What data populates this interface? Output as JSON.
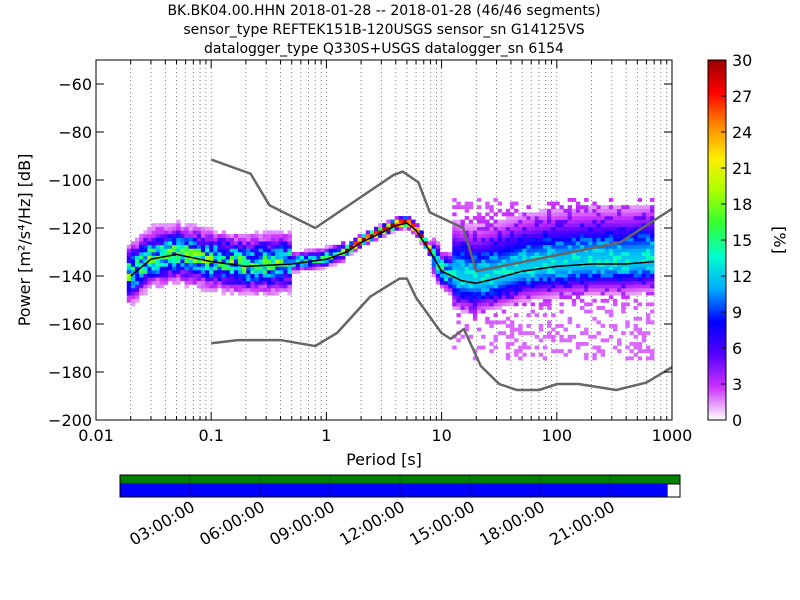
{
  "title": {
    "line1": "BK.BK04.00.HHN   2018-01-28 -- 2018-01-28  (46/46 segments)",
    "line2": "sensor_type REFTEK151B-120USGS sensor_sn G14125VS",
    "line3": "datalogger_type Q330S+USGS datalogger_sn 6154"
  },
  "chart_data": [
    {
      "type": "heatmap",
      "xlabel": "Period [s]",
      "ylabel": "Power [m²/s⁴/Hz] [dB]",
      "xscale": "log",
      "xlim": [
        0.01,
        1000
      ],
      "ylim": [
        -200,
        -50
      ],
      "xticks": [
        0.01,
        0.1,
        1,
        10,
        100,
        1000
      ],
      "xtick_labels": [
        "0.01",
        "0.1",
        "1",
        "10",
        "100",
        "1000"
      ],
      "yticks": [
        -200,
        -180,
        -160,
        -140,
        -120,
        -100,
        -80,
        -60
      ],
      "ytick_labels": [
        "−200",
        "−180",
        "−160",
        "−140",
        "−120",
        "−100",
        "−80",
        "−60"
      ],
      "grid": "dotted vertical at each log decade subdivision",
      "colorbar": {
        "label": "[%]",
        "min": 0,
        "max": 30,
        "ticks": [
          0,
          3,
          6,
          9,
          12,
          15,
          18,
          21,
          24,
          27,
          30
        ],
        "colors": [
          "#ffffff",
          "#cc33ff",
          "#5500ff",
          "#0000ff",
          "#00aaff",
          "#00ffcc",
          "#33ff33",
          "#aaff00",
          "#ffee00",
          "#ff8800",
          "#ff0000",
          "#990000"
        ]
      },
      "series": [
        {
          "name": "high noise model",
          "color": "#666666",
          "x": [
            0.1,
            0.22,
            0.32,
            0.8,
            3.8,
            4.6,
            6.3,
            7.9,
            15.4,
            20,
            354.8,
            1000
          ],
          "y": [
            -91.5,
            -97.4,
            -110.5,
            -120,
            -98,
            -96.5,
            -101,
            -113.5,
            -120,
            -138,
            -126,
            -112
          ]
        },
        {
          "name": "low noise model",
          "color": "#666666",
          "x": [
            0.1,
            0.17,
            0.4,
            0.8,
            1.24,
            2.4,
            4.3,
            5.0,
            6.0,
            10.0,
            12.0,
            15.6,
            21.9,
            31.6,
            45,
            70,
            101,
            154,
            328,
            600,
            1000
          ],
          "y": [
            -168,
            -166.7,
            -166.7,
            -169.2,
            -163.7,
            -148.6,
            -141.1,
            -141.1,
            -149,
            -163.8,
            -166.2,
            -162.1,
            -177.5,
            -185,
            -187.5,
            -187.5,
            -185,
            -185,
            -187.5,
            -184.4,
            -178
          ]
        },
        {
          "name": "mode",
          "color": "#000000",
          "x": [
            0.02,
            0.03,
            0.05,
            0.1,
            0.2,
            0.5,
            1,
            1.5,
            2,
            3,
            4,
            5,
            6,
            8,
            10,
            15,
            20,
            30,
            50,
            100,
            200,
            400,
            700
          ],
          "y": [
            -140,
            -133,
            -131,
            -134,
            -136,
            -135,
            -133,
            -130,
            -126,
            -122,
            -119,
            -118,
            -121,
            -130,
            -138,
            -142,
            -143,
            -141,
            -138,
            -136,
            -135,
            -135,
            -134
          ]
        }
      ]
    },
    {
      "type": "bar",
      "x": [
        "03:00:00",
        "06:00:00",
        "09:00:00",
        "12:00:00",
        "15:00:00",
        "18:00:00",
        "21:00:00"
      ],
      "xlabel": "",
      "series": [
        {
          "name": "data availability",
          "color": "#008000",
          "coverage": [
            0,
            1
          ]
        },
        {
          "name": "psd segments",
          "color": "#0000ff",
          "coverage": [
            0,
            0.978
          ]
        }
      ]
    }
  ]
}
